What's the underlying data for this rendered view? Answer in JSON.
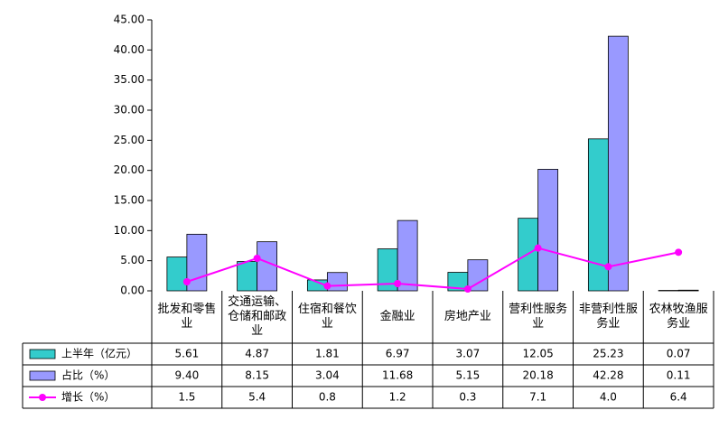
{
  "chart_data": {
    "type": "bar",
    "categories": [
      "批发和零售业",
      "交通运输、仓储和邮政业",
      "住宿和餐饮业",
      "金融业",
      "房地产业",
      "营利性服务业",
      "非营利性服务业",
      "农林牧渔服务业"
    ],
    "series": [
      {
        "name": "上半年（亿元）",
        "color": "#33cccc",
        "type": "bar",
        "values": [
          5.61,
          4.87,
          1.81,
          6.97,
          3.07,
          12.05,
          25.23,
          0.07
        ],
        "value_labels": [
          "5.61",
          "4.87",
          "1.81",
          "6.97",
          "3.07",
          "12.05",
          "25.23",
          "0.07"
        ]
      },
      {
        "name": "占比（%）",
        "color": "#9999ff",
        "type": "bar",
        "values": [
          9.4,
          8.15,
          3.04,
          11.68,
          5.15,
          20.18,
          42.28,
          0.11
        ],
        "value_labels": [
          "9.40",
          "8.15",
          "3.04",
          "11.68",
          "5.15",
          "20.18",
          "42.28",
          "0.11"
        ]
      },
      {
        "name": "增长（%）",
        "color": "#ff00ff",
        "type": "line",
        "values": [
          1.5,
          5.4,
          0.8,
          1.2,
          0.3,
          7.1,
          4.0,
          6.4
        ],
        "value_labels": [
          "1.5",
          "5.4",
          "0.8",
          "1.2",
          "0.3",
          "7.1",
          "4.0",
          "6.4"
        ]
      }
    ],
    "ylim": [
      0,
      45
    ],
    "yticks": [
      {
        "value": 0,
        "label": "0.00"
      },
      {
        "value": 5,
        "label": "5.00"
      },
      {
        "value": 10,
        "label": "10.00"
      },
      {
        "value": 15,
        "label": "15.00"
      },
      {
        "value": 20,
        "label": "20.00"
      },
      {
        "value": 25,
        "label": "25.00"
      },
      {
        "value": 30,
        "label": "30.00"
      },
      {
        "value": 35,
        "label": "35.00"
      },
      {
        "value": 40,
        "label": "40.00"
      },
      {
        "value": 45,
        "label": "45.00"
      }
    ]
  }
}
